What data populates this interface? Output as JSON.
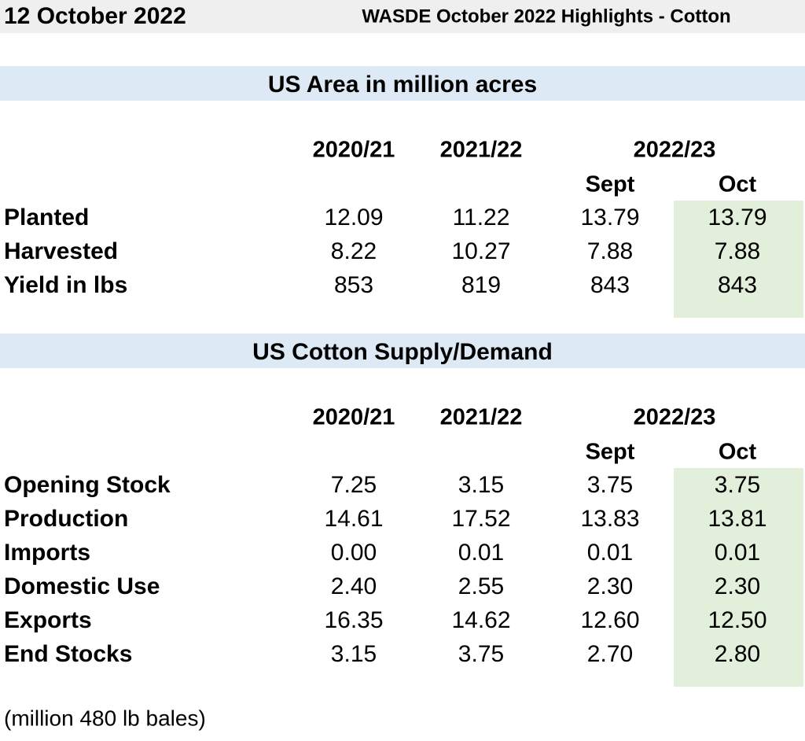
{
  "header": {
    "date": "12 October 2022",
    "title": "WASDE October 2022 Highlights - Cotton"
  },
  "sections": [
    {
      "title": "US Area in million acres",
      "columns": [
        "2020/21",
        "2021/22",
        "2022/23"
      ],
      "subcolumns": [
        "Sept",
        "Oct"
      ],
      "rows": [
        {
          "label": "Planted",
          "values": [
            "12.09",
            "11.22",
            "13.79",
            "13.79"
          ]
        },
        {
          "label": "Harvested",
          "values": [
            "8.22",
            "10.27",
            "7.88",
            "7.88"
          ]
        },
        {
          "label": "Yield in lbs",
          "values": [
            "853",
            "819",
            "843",
            "843"
          ]
        }
      ]
    },
    {
      "title": "US Cotton Supply/Demand",
      "columns": [
        "2020/21",
        "2021/22",
        "2022/23"
      ],
      "subcolumns": [
        "Sept",
        "Oct"
      ],
      "rows": [
        {
          "label": "Opening Stock",
          "values": [
            "7.25",
            "3.15",
            "3.75",
            "3.75"
          ]
        },
        {
          "label": "Production",
          "values": [
            "14.61",
            "17.52",
            "13.83",
            "13.81"
          ]
        },
        {
          "label": "Imports",
          "values": [
            "0.00",
            "0.01",
            "0.01",
            "0.01"
          ]
        },
        {
          "label": "Domestic Use",
          "values": [
            "2.40",
            "2.55",
            "2.30",
            "2.30"
          ]
        },
        {
          "label": "Exports",
          "values": [
            "16.35",
            "14.62",
            "12.60",
            "12.50"
          ]
        },
        {
          "label": "End Stocks",
          "values": [
            "3.15",
            "3.75",
            "2.70",
            "2.80"
          ]
        }
      ]
    }
  ],
  "footnote": "(million 480 lb bales)"
}
